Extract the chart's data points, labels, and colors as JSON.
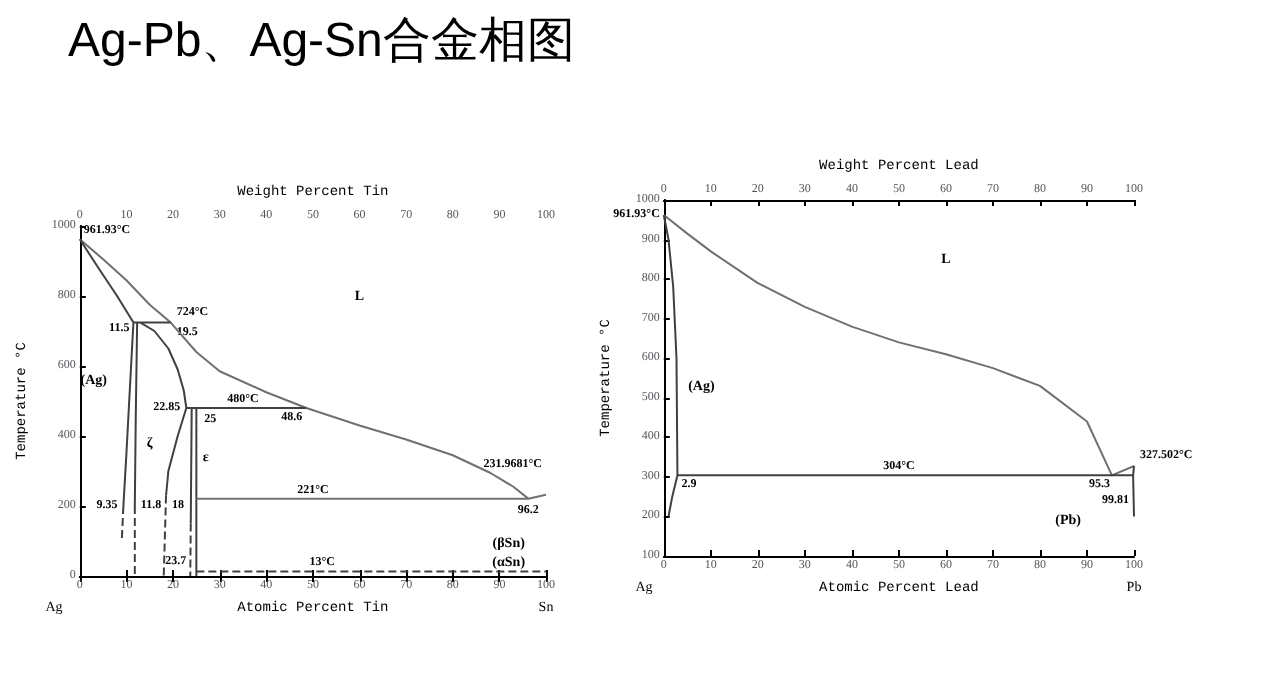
{
  "chart_data": [
    {
      "type": "line",
      "title": "Ag-Pb、Ag-Sn合金相图",
      "xlabel": "Atomic Percent Tin",
      "x2label": "Weight Percent Tin",
      "ylabel": "Temperature °C",
      "xlim": [
        0,
        100
      ],
      "xticks": [
        0,
        10,
        20,
        30,
        40,
        50,
        60,
        70,
        80,
        90,
        100
      ],
      "x2lim": [
        0,
        100
      ],
      "x2ticks": [
        0,
        10,
        20,
        30,
        40,
        50,
        60,
        70,
        80,
        90,
        100
      ],
      "ylim": [
        0,
        1000
      ],
      "yticks": [
        0,
        200,
        400,
        600,
        800,
        1000
      ],
      "marker": "none",
      "series": [
        {
          "color": "#707070",
          "x": [
            0,
            5,
            10,
            15,
            19.5,
            25,
            30,
            40,
            48.6,
            60,
            70,
            80,
            88,
            93,
            96.2,
            100
          ],
          "values": [
            961.93,
            905,
            845,
            775,
            724,
            640,
            585,
            525,
            480,
            430,
            390,
            345,
            295,
            255,
            221,
            231.9681
          ]
        },
        {
          "color": "#404040",
          "x": [
            0,
            4,
            8,
            11.5,
            10.8,
            10,
            9.35
          ],
          "values": [
            961.93,
            880,
            800,
            724,
            550,
            350,
            200
          ]
        },
        {
          "color": "#404040",
          "line_style": "dashed",
          "x": [
            9.35,
            9
          ],
          "values": [
            200,
            100
          ]
        },
        {
          "color": "#404040",
          "x": [
            11.5,
            19.5
          ],
          "values": [
            724,
            724
          ]
        },
        {
          "color": "#404040",
          "x": [
            12.3,
            12,
            11.8
          ],
          "values": [
            724,
            450,
            200
          ]
        },
        {
          "color": "#404040",
          "line_style": "dashed",
          "x": [
            11.8,
            11.8
          ],
          "values": [
            200,
            0
          ]
        },
        {
          "color": "#404040",
          "x": [
            13,
            16,
            19,
            21,
            22.3,
            22.85,
            21,
            19,
            18.5
          ],
          "values": [
            724,
            700,
            650,
            590,
            530,
            480,
            400,
            300,
            230
          ]
        },
        {
          "color": "#404040",
          "line_style": "dashed",
          "x": [
            18.5,
            18
          ],
          "values": [
            230,
            0
          ]
        },
        {
          "color": "#404040",
          "x": [
            22.85,
            48.6
          ],
          "values": [
            480,
            480
          ]
        },
        {
          "color": "#404040",
          "x": [
            24,
            23.8
          ],
          "values": [
            480,
            150
          ]
        },
        {
          "color": "#404040",
          "line_style": "dashed",
          "x": [
            23.8,
            23.7
          ],
          "values": [
            150,
            0
          ]
        },
        {
          "color": "#404040",
          "x": [
            25,
            25
          ],
          "values": [
            480,
            0
          ]
        },
        {
          "color": "#707070",
          "x": [
            25,
            96.2
          ],
          "values": [
            221,
            221
          ]
        },
        {
          "color": "#404040",
          "line_style": "dashed",
          "x": [
            25,
            100
          ],
          "values": [
            13,
            13
          ]
        }
      ],
      "annotations": [
        {
          "text": "961.93°C",
          "x": 0,
          "y": 961.93
        },
        {
          "text": "724°C",
          "x": 19.5,
          "y": 724
        },
        {
          "text": "11.5",
          "x": 11.5,
          "y": 724
        },
        {
          "text": "19.5",
          "x": 19.5,
          "y": 724
        },
        "(Ag)",
        "ζ",
        {
          "text": "22.85",
          "x": 22.85,
          "y": 480
        },
        {
          "text": "25",
          "x": 25,
          "y": 480
        },
        {
          "text": "480°C",
          "x": 35,
          "y": 480
        },
        {
          "text": "48.6",
          "x": 48.6,
          "y": 480
        },
        "ε",
        {
          "text": "9.35",
          "x": 9.35,
          "y": 200
        },
        {
          "text": "11.8",
          "x": 11.8,
          "y": 200
        },
        {
          "text": "18",
          "x": 18.5,
          "y": 230
        },
        {
          "text": "23.7",
          "x": 23.7,
          "y": 0
        },
        {
          "text": "221°C",
          "x": 50,
          "y": 221
        },
        {
          "text": "231.9681°C",
          "x": 100,
          "y": 231.9681
        },
        {
          "text": "96.2",
          "x": 96.2,
          "y": 221
        },
        "(βSn)",
        "(αSn)",
        {
          "text": "13°C",
          "x": 52,
          "y": 13
        },
        "L",
        "Ag",
        "Sn"
      ]
    },
    {
      "type": "line",
      "xlabel": "Atomic Percent Lead",
      "x2label": "Weight Percent Lead",
      "ylabel": "Temperature °C",
      "xlim": [
        0,
        100
      ],
      "xticks": [
        0,
        10,
        20,
        30,
        40,
        50,
        60,
        70,
        80,
        90,
        100
      ],
      "x2lim": [
        0,
        100
      ],
      "x2ticks": [
        0,
        10,
        20,
        30,
        40,
        50,
        60,
        70,
        80,
        90,
        100
      ],
      "ylim": [
        100,
        1000
      ],
      "yticks": [
        100,
        200,
        300,
        400,
        500,
        600,
        700,
        800,
        900,
        1000
      ],
      "marker": "none",
      "series": [
        {
          "color": "#707070",
          "x": [
            0,
            5,
            10,
            20,
            30,
            40,
            50,
            60,
            70,
            80,
            90,
            95.3,
            100
          ],
          "values": [
            961.93,
            915,
            870,
            790,
            730,
            680,
            640,
            610,
            575,
            530,
            440,
            304,
            327.502
          ]
        },
        {
          "color": "#404040",
          "x": [
            0,
            1,
            2,
            2.7,
            2.9,
            1.8,
            1
          ],
          "values": [
            961.93,
            900,
            780,
            600,
            304,
            250,
            200
          ]
        },
        {
          "color": "#404040",
          "x": [
            2.9,
            99.81
          ],
          "values": [
            304,
            304
          ]
        },
        {
          "color": "#404040",
          "x": [
            100,
            99.81,
            100
          ],
          "values": [
            327.502,
            304,
            200
          ]
        }
      ],
      "annotations": [
        {
          "text": "961.93°C",
          "x": 0,
          "y": 961.93
        },
        "(Ag)",
        {
          "text": "2.9",
          "x": 2.9,
          "y": 304
        },
        {
          "text": "304°C",
          "x": 50,
          "y": 304
        },
        {
          "text": "327.502°C",
          "x": 100,
          "y": 327.502
        },
        {
          "text": "95.3",
          "x": 95.3,
          "y": 304
        },
        {
          "text": "99.81",
          "x": 99.81,
          "y": 304
        },
        "(Pb)",
        "L",
        "Ag",
        "Pb"
      ]
    }
  ]
}
